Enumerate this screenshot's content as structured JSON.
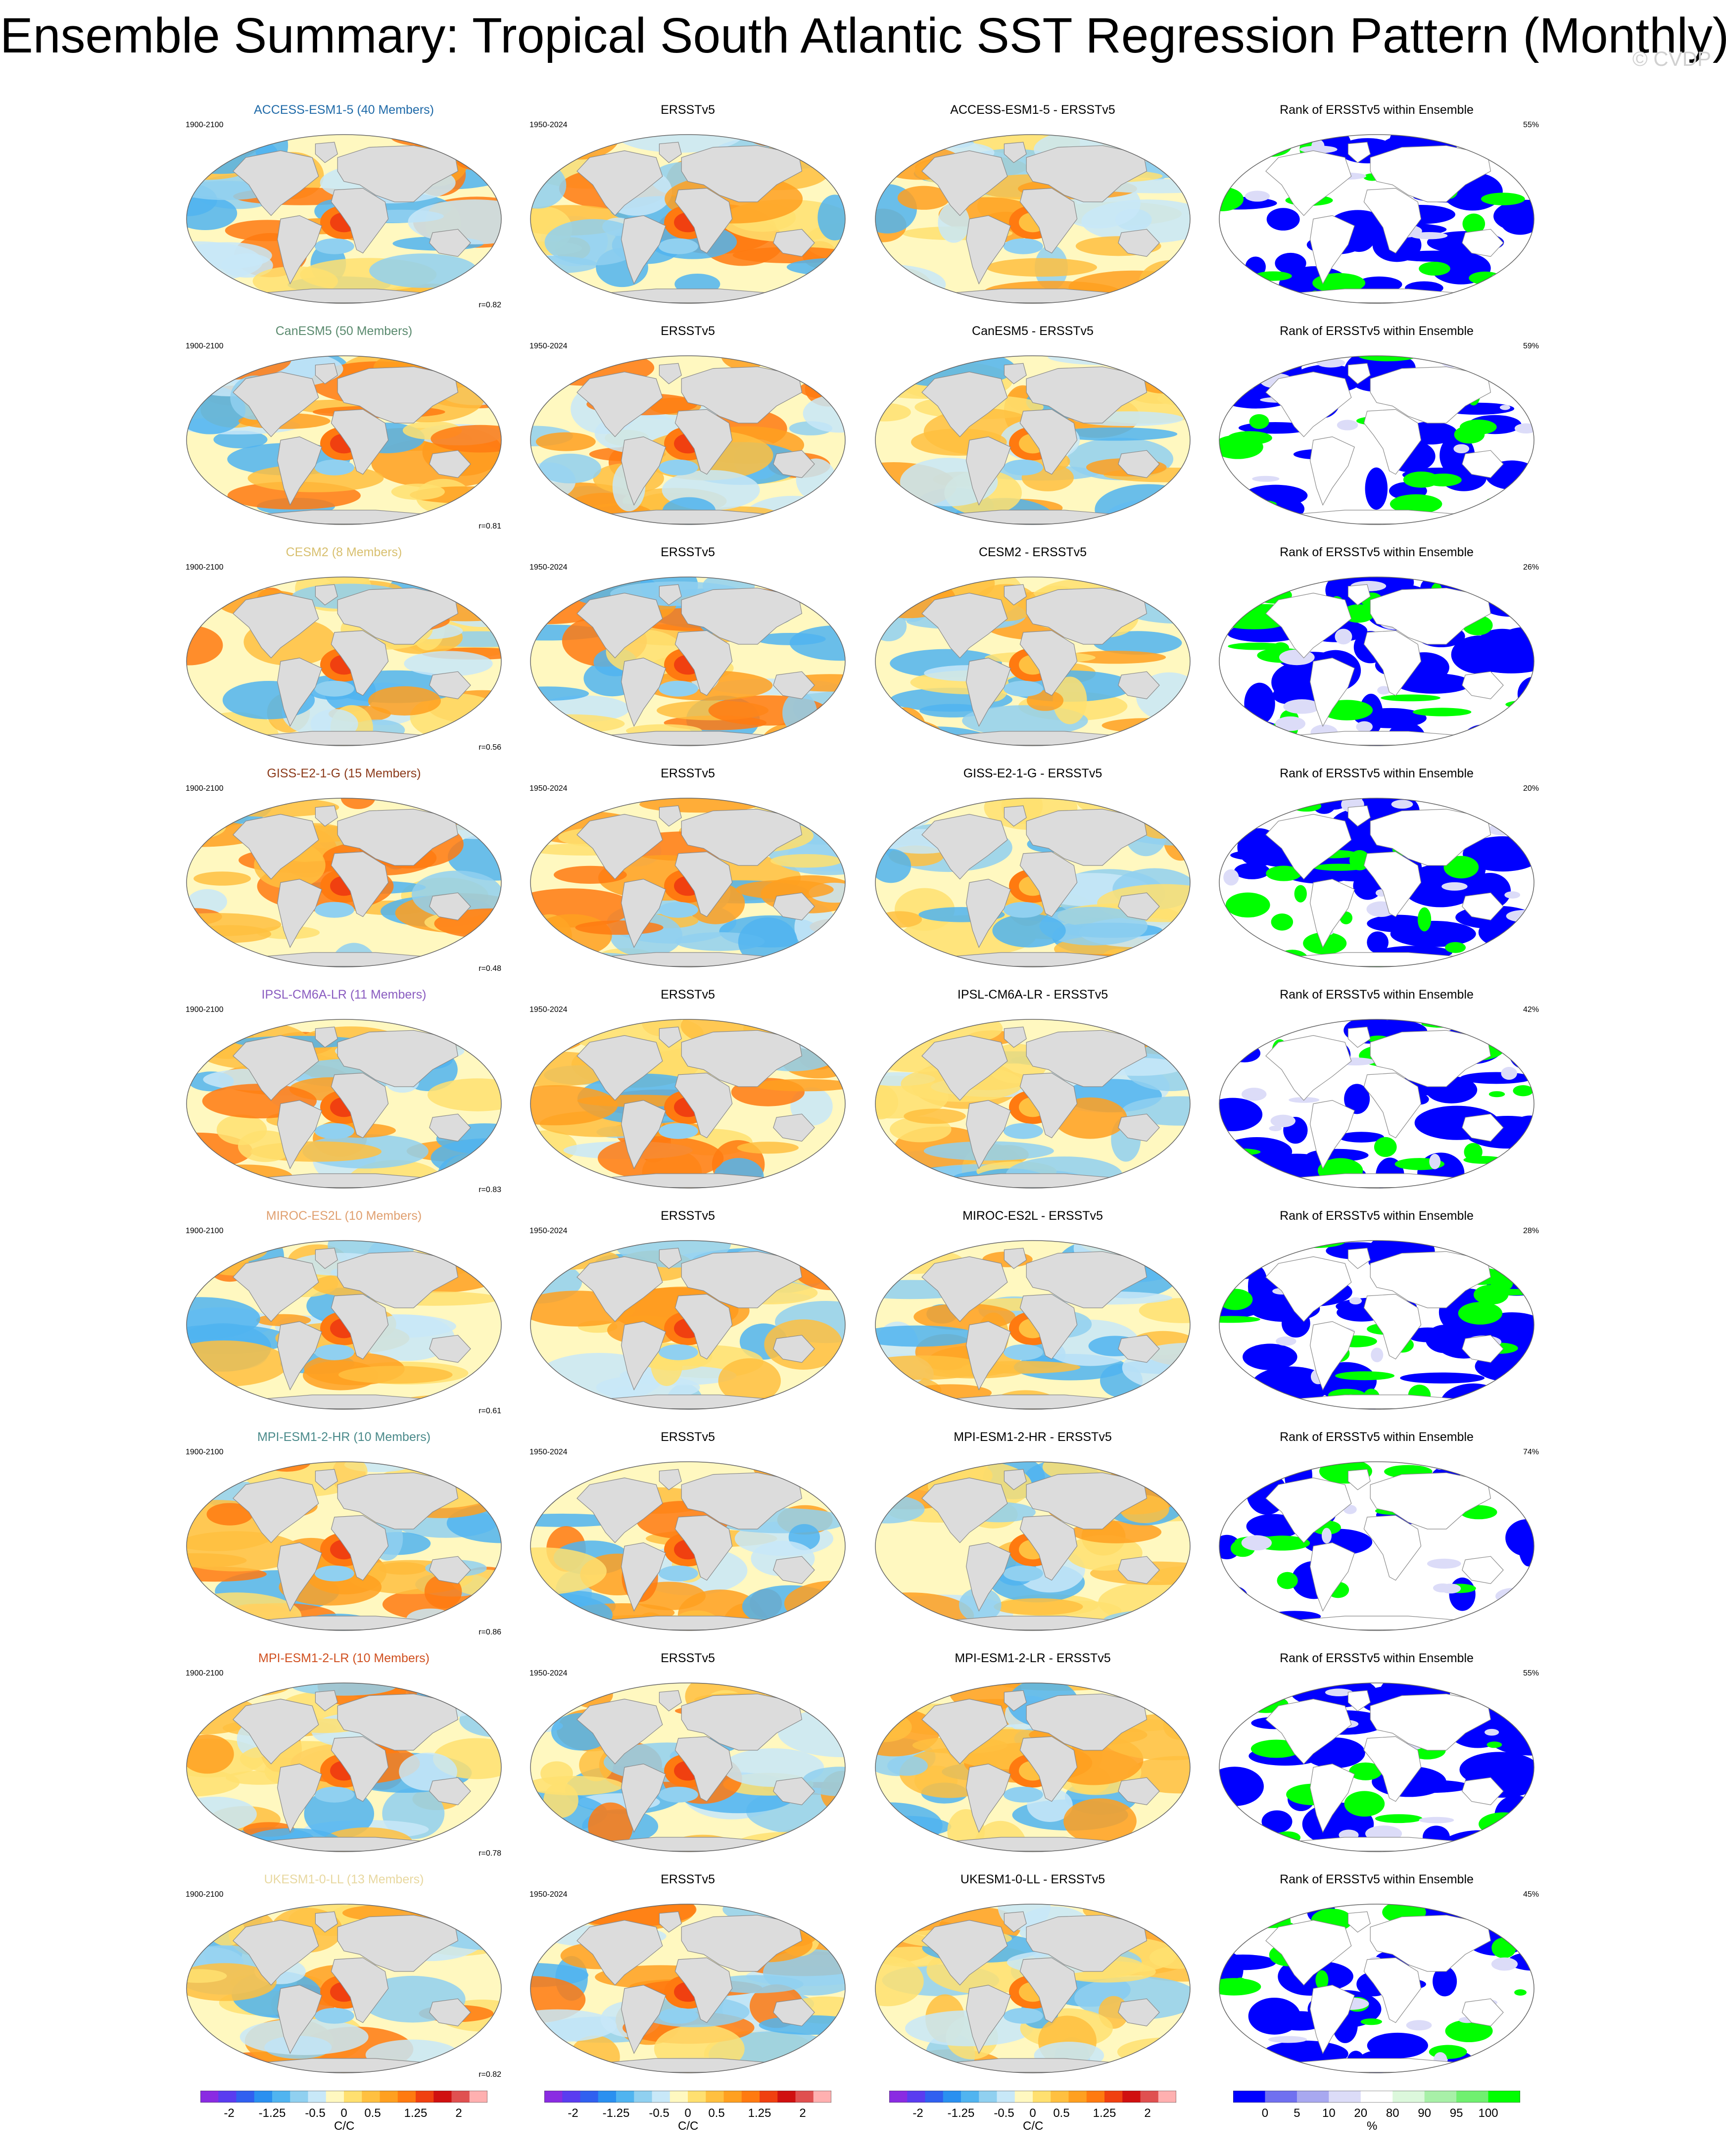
{
  "title": "Ensemble Summary: Tropical South Atlantic SST Regression Pattern (Monthly)",
  "watermark": "© CVDP",
  "rows": [
    {
      "model": "ACCESS-ESM1-5 (40 Members)",
      "model_color": "#1f6aa8",
      "years": "1900-2100",
      "obs_years": "1950-2024",
      "obs": "ERSSTv5",
      "diff": "ACCESS-ESM1-5 - ERSSTv5",
      "rank_title": "Rank of ERSSTv5 within Ensemble",
      "pct": "55%",
      "r": "r=0.82"
    },
    {
      "model": "CanESM5 (50 Members)",
      "model_color": "#5a8a6e",
      "years": "1900-2100",
      "obs_years": "1950-2024",
      "obs": "ERSSTv5",
      "diff": "CanESM5 - ERSSTv5",
      "rank_title": "Rank of ERSSTv5 within Ensemble",
      "pct": "59%",
      "r": "r=0.81"
    },
    {
      "model": "CESM2 (8 Members)",
      "model_color": "#d8c070",
      "years": "1900-2100",
      "obs_years": "1950-2024",
      "obs": "ERSSTv5",
      "diff": "CESM2 - ERSSTv5",
      "rank_title": "Rank of ERSSTv5 within Ensemble",
      "pct": "26%",
      "r": "r=0.56"
    },
    {
      "model": "GISS-E2-1-G (15 Members)",
      "model_color": "#8b3a1a",
      "years": "1900-2100",
      "obs_years": "1950-2024",
      "obs": "ERSSTv5",
      "diff": "GISS-E2-1-G - ERSSTv5",
      "rank_title": "Rank of ERSSTv5 within Ensemble",
      "pct": "20%",
      "r": "r=0.48"
    },
    {
      "model": "IPSL-CM6A-LR (11 Members)",
      "model_color": "#8a5cc0",
      "years": "1900-2100",
      "obs_years": "1950-2024",
      "obs": "ERSSTv5",
      "diff": "IPSL-CM6A-LR - ERSSTv5",
      "rank_title": "Rank of ERSSTv5 within Ensemble",
      "pct": "42%",
      "r": "r=0.83"
    },
    {
      "model": "MIROC-ES2L (10 Members)",
      "model_color": "#e0a070",
      "years": "1900-2100",
      "obs_years": "1950-2024",
      "obs": "ERSSTv5",
      "diff": "MIROC-ES2L - ERSSTv5",
      "rank_title": "Rank of ERSSTv5 within Ensemble",
      "pct": "28%",
      "r": "r=0.61"
    },
    {
      "model": "MPI-ESM1-2-HR (10 Members)",
      "model_color": "#4a8a8a",
      "years": "1900-2100",
      "obs_years": "1950-2024",
      "obs": "ERSSTv5",
      "diff": "MPI-ESM1-2-HR - ERSSTv5",
      "rank_title": "Rank of ERSSTv5 within Ensemble",
      "pct": "74%",
      "r": "r=0.86"
    },
    {
      "model": "MPI-ESM1-2-LR (10 Members)",
      "model_color": "#d05020",
      "years": "1900-2100",
      "obs_years": "1950-2024",
      "obs": "ERSSTv5",
      "diff": "MPI-ESM1-2-LR - ERSSTv5",
      "rank_title": "Rank of ERSSTv5 within Ensemble",
      "pct": "55%",
      "r": "r=0.78"
    },
    {
      "model": "UKESM1-0-LL (13 Members)",
      "model_color": "#e8d8a0",
      "years": "1900-2100",
      "obs_years": "1950-2024",
      "obs": "ERSSTv5",
      "diff": "UKESM1-0-LL - ERSSTv5",
      "rank_title": "Rank of ERSSTv5 within Ensemble",
      "pct": "45%",
      "r": "r=0.82"
    }
  ],
  "colorbar_sst": {
    "colors": [
      "#8a2be2",
      "#5a3cf0",
      "#3060f0",
      "#2a90f0",
      "#50b4f0",
      "#90d0f0",
      "#c8e8f8",
      "#fff8c0",
      "#ffe070",
      "#ffc040",
      "#ffa020",
      "#ff7a10",
      "#f04010",
      "#d01010",
      "#e05050",
      "#ffb0b0"
    ],
    "tick_labels": [
      "-2",
      "-1.25",
      "-0.5",
      "0",
      "0.5",
      "1.25",
      "2"
    ],
    "tick_values": [
      -2,
      -1.25,
      -0.5,
      0,
      0.5,
      1.25,
      2
    ],
    "unit": "C/C"
  },
  "colorbar_rank": {
    "colors": [
      "#0000ff",
      "#7070f0",
      "#a8a8f0",
      "#dcdcf8",
      "#ffffff",
      "#dcf8dc",
      "#a8f0a8",
      "#70f070",
      "#00ff00"
    ],
    "tick_labels": [
      "0",
      "5",
      "10",
      "20",
      "80",
      "90",
      "95",
      "100"
    ],
    "unit": "%"
  },
  "colors": {
    "land": "#dcdcdc",
    "rank_low": "#0000ff",
    "rank_high": "#00ff00"
  }
}
